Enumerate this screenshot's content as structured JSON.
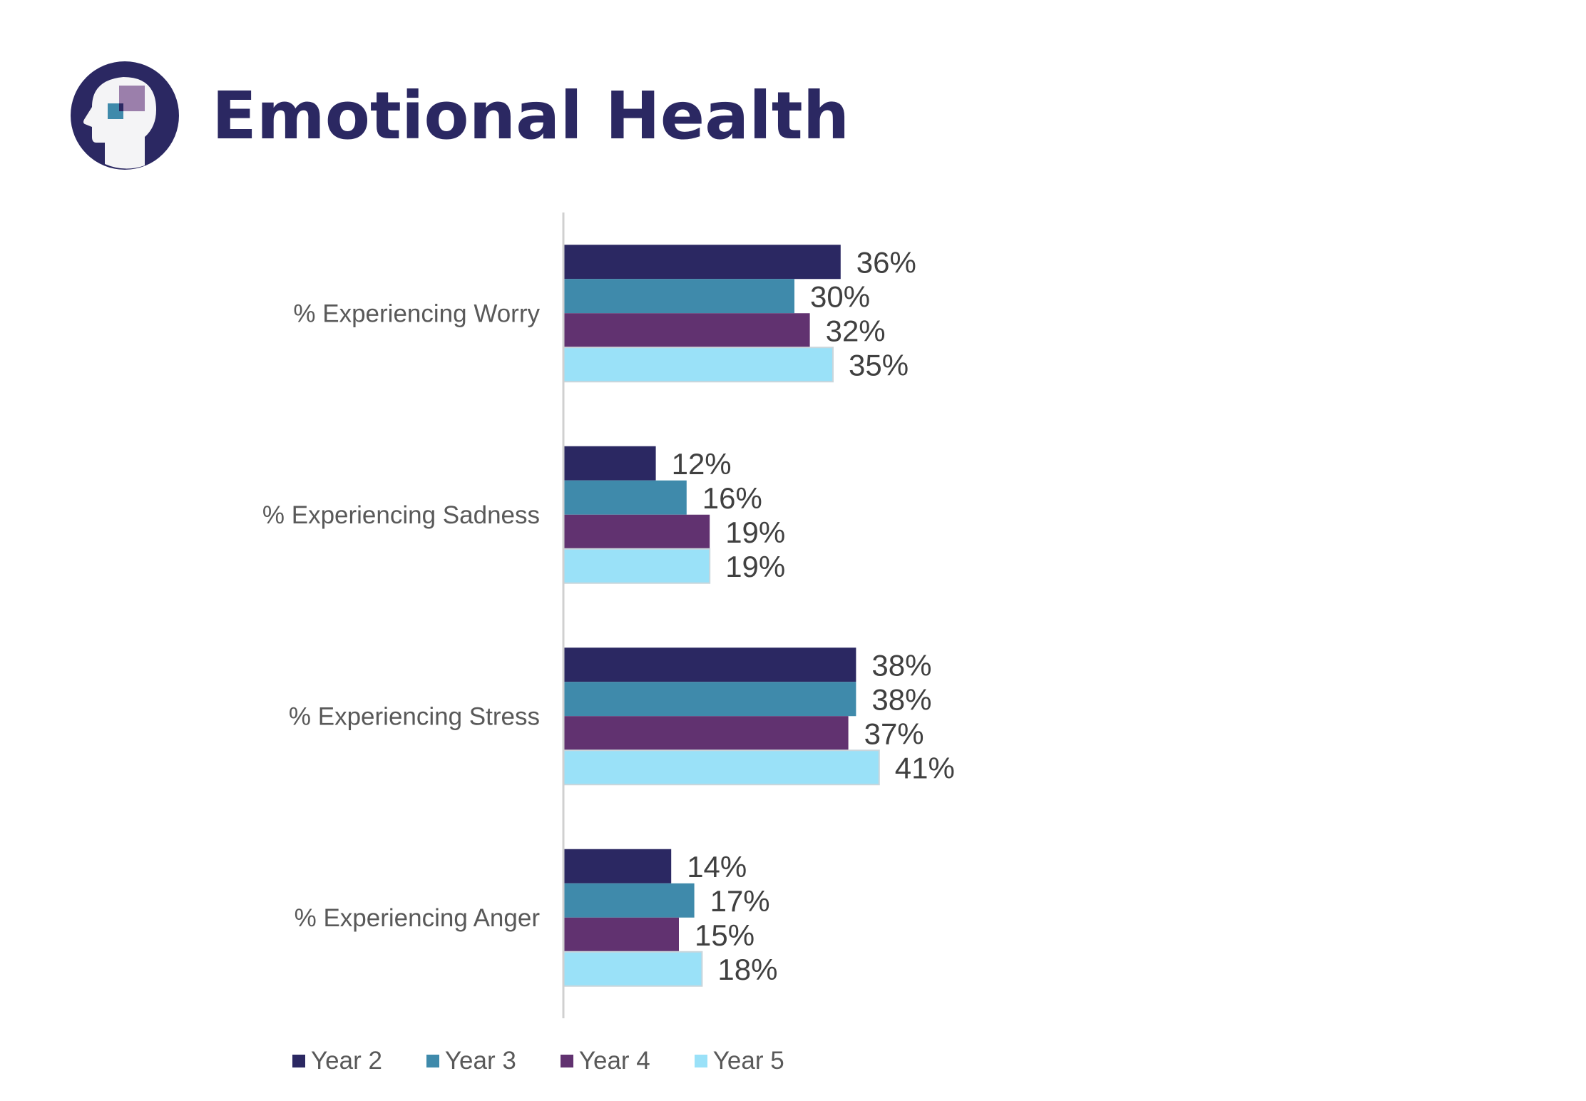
{
  "header": {
    "title": "Emotional Health",
    "logo_icon": "head-with-squares-icon",
    "title_color": "#2b2862"
  },
  "chart_data": {
    "type": "bar",
    "orientation": "horizontal",
    "title": "",
    "xlabel": "",
    "ylabel": "",
    "categories": [
      "% Experiencing Worry",
      "% Experiencing Sadness",
      "% Experiencing Stress",
      "% Experiencing Anger"
    ],
    "series": [
      {
        "name": "Year 2",
        "color": "#2b2862",
        "values": [
          36,
          12,
          38,
          14
        ]
      },
      {
        "name": "Year 3",
        "color": "#3f8aab",
        "values": [
          30,
          16,
          38,
          17
        ]
      },
      {
        "name": "Year 4",
        "color": "#613270",
        "values": [
          32,
          19,
          37,
          15
        ]
      },
      {
        "name": "Year 5",
        "color": "#9ae1f8",
        "values": [
          35,
          19,
          41,
          18
        ]
      }
    ],
    "value_suffix": "%",
    "xlim": [
      0,
      100
    ],
    "grid": false,
    "data_labels": true,
    "legend_position": "bottom"
  }
}
